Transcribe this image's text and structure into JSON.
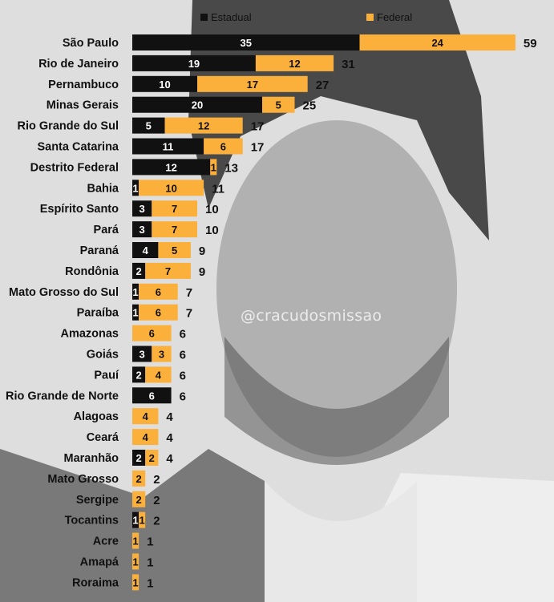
{
  "watermark": "@cracudosmissao",
  "colors": {
    "estadual": "#111111",
    "federal": "#fbb03b"
  },
  "chart_data": {
    "type": "bar",
    "orientation": "horizontal",
    "stacked": true,
    "legend_position": "top",
    "series": [
      {
        "name": "Estadual",
        "values": [
          35,
          19,
          10,
          20,
          5,
          11,
          12,
          1,
          3,
          3,
          4,
          2,
          1,
          1,
          0,
          3,
          2,
          6,
          0,
          0,
          2,
          0,
          0,
          1,
          0,
          0,
          0
        ]
      },
      {
        "name": "Federal",
        "values": [
          24,
          12,
          17,
          5,
          12,
          6,
          1,
          10,
          7,
          7,
          5,
          7,
          6,
          6,
          6,
          3,
          4,
          0,
          4,
          4,
          2,
          2,
          2,
          1,
          1,
          1,
          1
        ]
      }
    ],
    "categories": [
      "São Paulo",
      "Rio de Janeiro",
      "Pernambuco",
      "Minas Gerais",
      "Rio Grande do Sul",
      "Santa Catarina",
      "Destrito Federal",
      "Bahia",
      "Espírito Santo",
      "Pará",
      "Paraná",
      "Rondônia",
      "Mato Grosso do Sul",
      "Paraíba",
      "Amazonas",
      "Goiás",
      "Pauí",
      "Rio Grande de Norte",
      "Alagoas",
      "Ceará",
      "Maranhão",
      "Mato Grosso",
      "Sergipe",
      "Tocantins",
      "Acre",
      "Amapá",
      "Roraima"
    ],
    "totals": [
      59,
      31,
      27,
      25,
      17,
      17,
      13,
      11,
      10,
      10,
      9,
      9,
      7,
      7,
      6,
      6,
      6,
      6,
      4,
      4,
      4,
      2,
      2,
      2,
      1,
      1,
      1
    ]
  }
}
